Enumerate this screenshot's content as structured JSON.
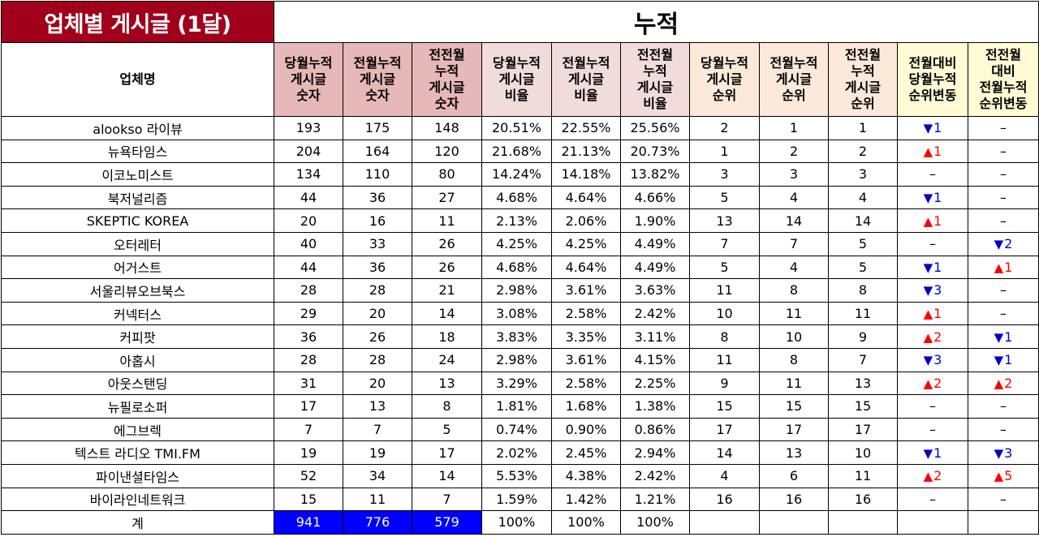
{
  "title": "업체별 게시글 (1달)",
  "section": "누적",
  "headers": [
    "업체명",
    "당월누적\n게시글\n숫자",
    "전월누적\n게시글\n숫자",
    "전전월\n누적\n게시글\n숫자",
    "당월누적\n게시글\n비율",
    "전월누적\n게시글\n비율",
    "전전월\n누적\n게시글\n비율",
    "당월누적\n게시글\n순위",
    "전월누적\n게시글\n순위",
    "전전월\n누적\n게시글\n순위",
    "전월대비\n당월누적\n순위변동",
    "전전월\n대비\n전월누적\n순위변동"
  ],
  "colors": {
    "title_bg": "#a0001a",
    "count_header": "#e6b8b7",
    "ratio_header": "#f2dcdb",
    "rank_header": "#fde9d9",
    "change_header": "#fffbd5",
    "up": "#ff0000",
    "down": "#0000cc",
    "total_highlight": "#0000ff"
  },
  "rows": [
    {
      "name": "alookso 라이뷰",
      "c1": "193",
      "c2": "175",
      "c3": "148",
      "r1": "20.51%",
      "r2": "22.55%",
      "r3": "25.56%",
      "k1": "2",
      "k2": "1",
      "k3": "1",
      "ch1": {
        "dir": "down",
        "val": "1"
      },
      "ch2": {
        "dir": "none",
        "val": "–"
      }
    },
    {
      "name": "뉴욕타임스",
      "c1": "204",
      "c2": "164",
      "c3": "120",
      "r1": "21.68%",
      "r2": "21.13%",
      "r3": "20.73%",
      "k1": "1",
      "k2": "2",
      "k3": "2",
      "ch1": {
        "dir": "up",
        "val": "1"
      },
      "ch2": {
        "dir": "none",
        "val": "–"
      }
    },
    {
      "name": "이코노미스트",
      "c1": "134",
      "c2": "110",
      "c3": "80",
      "r1": "14.24%",
      "r2": "14.18%",
      "r3": "13.82%",
      "k1": "3",
      "k2": "3",
      "k3": "3",
      "ch1": {
        "dir": "none",
        "val": "–"
      },
      "ch2": {
        "dir": "none",
        "val": "–"
      }
    },
    {
      "name": "북저널리즘",
      "c1": "44",
      "c2": "36",
      "c3": "27",
      "r1": "4.68%",
      "r2": "4.64%",
      "r3": "4.66%",
      "k1": "5",
      "k2": "4",
      "k3": "4",
      "ch1": {
        "dir": "down",
        "val": "1"
      },
      "ch2": {
        "dir": "none",
        "val": "–"
      }
    },
    {
      "name": "SKEPTIC KOREA",
      "c1": "20",
      "c2": "16",
      "c3": "11",
      "r1": "2.13%",
      "r2": "2.06%",
      "r3": "1.90%",
      "k1": "13",
      "k2": "14",
      "k3": "14",
      "ch1": {
        "dir": "up",
        "val": "1"
      },
      "ch2": {
        "dir": "none",
        "val": "–"
      }
    },
    {
      "name": "오터레터",
      "c1": "40",
      "c2": "33",
      "c3": "26",
      "r1": "4.25%",
      "r2": "4.25%",
      "r3": "4.49%",
      "k1": "7",
      "k2": "7",
      "k3": "5",
      "ch1": {
        "dir": "none",
        "val": "–"
      },
      "ch2": {
        "dir": "down",
        "val": "2"
      }
    },
    {
      "name": "어거스트",
      "c1": "44",
      "c2": "36",
      "c3": "26",
      "r1": "4.68%",
      "r2": "4.64%",
      "r3": "4.49%",
      "k1": "5",
      "k2": "4",
      "k3": "5",
      "ch1": {
        "dir": "down",
        "val": "1"
      },
      "ch2": {
        "dir": "up",
        "val": "1"
      }
    },
    {
      "name": "서울리뷰오브북스",
      "c1": "28",
      "c2": "28",
      "c3": "21",
      "r1": "2.98%",
      "r2": "3.61%",
      "r3": "3.63%",
      "k1": "11",
      "k2": "8",
      "k3": "8",
      "ch1": {
        "dir": "down",
        "val": "3"
      },
      "ch2": {
        "dir": "none",
        "val": "–"
      }
    },
    {
      "name": "커넥터스",
      "c1": "29",
      "c2": "20",
      "c3": "14",
      "r1": "3.08%",
      "r2": "2.58%",
      "r3": "2.42%",
      "k1": "10",
      "k2": "11",
      "k3": "11",
      "ch1": {
        "dir": "up",
        "val": "1"
      },
      "ch2": {
        "dir": "none",
        "val": "–"
      }
    },
    {
      "name": "커피팟",
      "c1": "36",
      "c2": "26",
      "c3": "18",
      "r1": "3.83%",
      "r2": "3.35%",
      "r3": "3.11%",
      "k1": "8",
      "k2": "10",
      "k3": "9",
      "ch1": {
        "dir": "up",
        "val": "2"
      },
      "ch2": {
        "dir": "down",
        "val": "1"
      }
    },
    {
      "name": "아홉시",
      "c1": "28",
      "c2": "28",
      "c3": "24",
      "r1": "2.98%",
      "r2": "3.61%",
      "r3": "4.15%",
      "k1": "11",
      "k2": "8",
      "k3": "7",
      "ch1": {
        "dir": "down",
        "val": "3"
      },
      "ch2": {
        "dir": "down",
        "val": "1"
      }
    },
    {
      "name": "아웃스탠딩",
      "c1": "31",
      "c2": "20",
      "c3": "13",
      "r1": "3.29%",
      "r2": "2.58%",
      "r3": "2.25%",
      "k1": "9",
      "k2": "11",
      "k3": "13",
      "ch1": {
        "dir": "up",
        "val": "2"
      },
      "ch2": {
        "dir": "up",
        "val": "2"
      }
    },
    {
      "name": "뉴필로소퍼",
      "c1": "17",
      "c2": "13",
      "c3": "8",
      "r1": "1.81%",
      "r2": "1.68%",
      "r3": "1.38%",
      "k1": "15",
      "k2": "15",
      "k3": "15",
      "ch1": {
        "dir": "none",
        "val": "–"
      },
      "ch2": {
        "dir": "none",
        "val": "–"
      }
    },
    {
      "name": "에그브렉",
      "c1": "7",
      "c2": "7",
      "c3": "5",
      "r1": "0.74%",
      "r2": "0.90%",
      "r3": "0.86%",
      "k1": "17",
      "k2": "17",
      "k3": "17",
      "ch1": {
        "dir": "none",
        "val": "–"
      },
      "ch2": {
        "dir": "none",
        "val": "–"
      }
    },
    {
      "name": "텍스트 라디오 TMI.FM",
      "c1": "19",
      "c2": "19",
      "c3": "17",
      "r1": "2.02%",
      "r2": "2.45%",
      "r3": "2.94%",
      "k1": "14",
      "k2": "13",
      "k3": "10",
      "ch1": {
        "dir": "down",
        "val": "1"
      },
      "ch2": {
        "dir": "down",
        "val": "3"
      }
    },
    {
      "name": "파이낸셜타임스",
      "c1": "52",
      "c2": "34",
      "c3": "14",
      "r1": "5.53%",
      "r2": "4.38%",
      "r3": "2.42%",
      "k1": "4",
      "k2": "6",
      "k3": "11",
      "ch1": {
        "dir": "up",
        "val": "2"
      },
      "ch2": {
        "dir": "up",
        "val": "5"
      }
    },
    {
      "name": "바이라인네트워크",
      "c1": "15",
      "c2": "11",
      "c3": "7",
      "r1": "1.59%",
      "r2": "1.42%",
      "r3": "1.21%",
      "k1": "16",
      "k2": "16",
      "k3": "16",
      "ch1": {
        "dir": "none",
        "val": "–"
      },
      "ch2": {
        "dir": "none",
        "val": "–"
      }
    }
  ],
  "total": {
    "name": "계",
    "c1": "941",
    "c2": "776",
    "c3": "579",
    "r1": "100%",
    "r2": "100%",
    "r3": "100%"
  }
}
